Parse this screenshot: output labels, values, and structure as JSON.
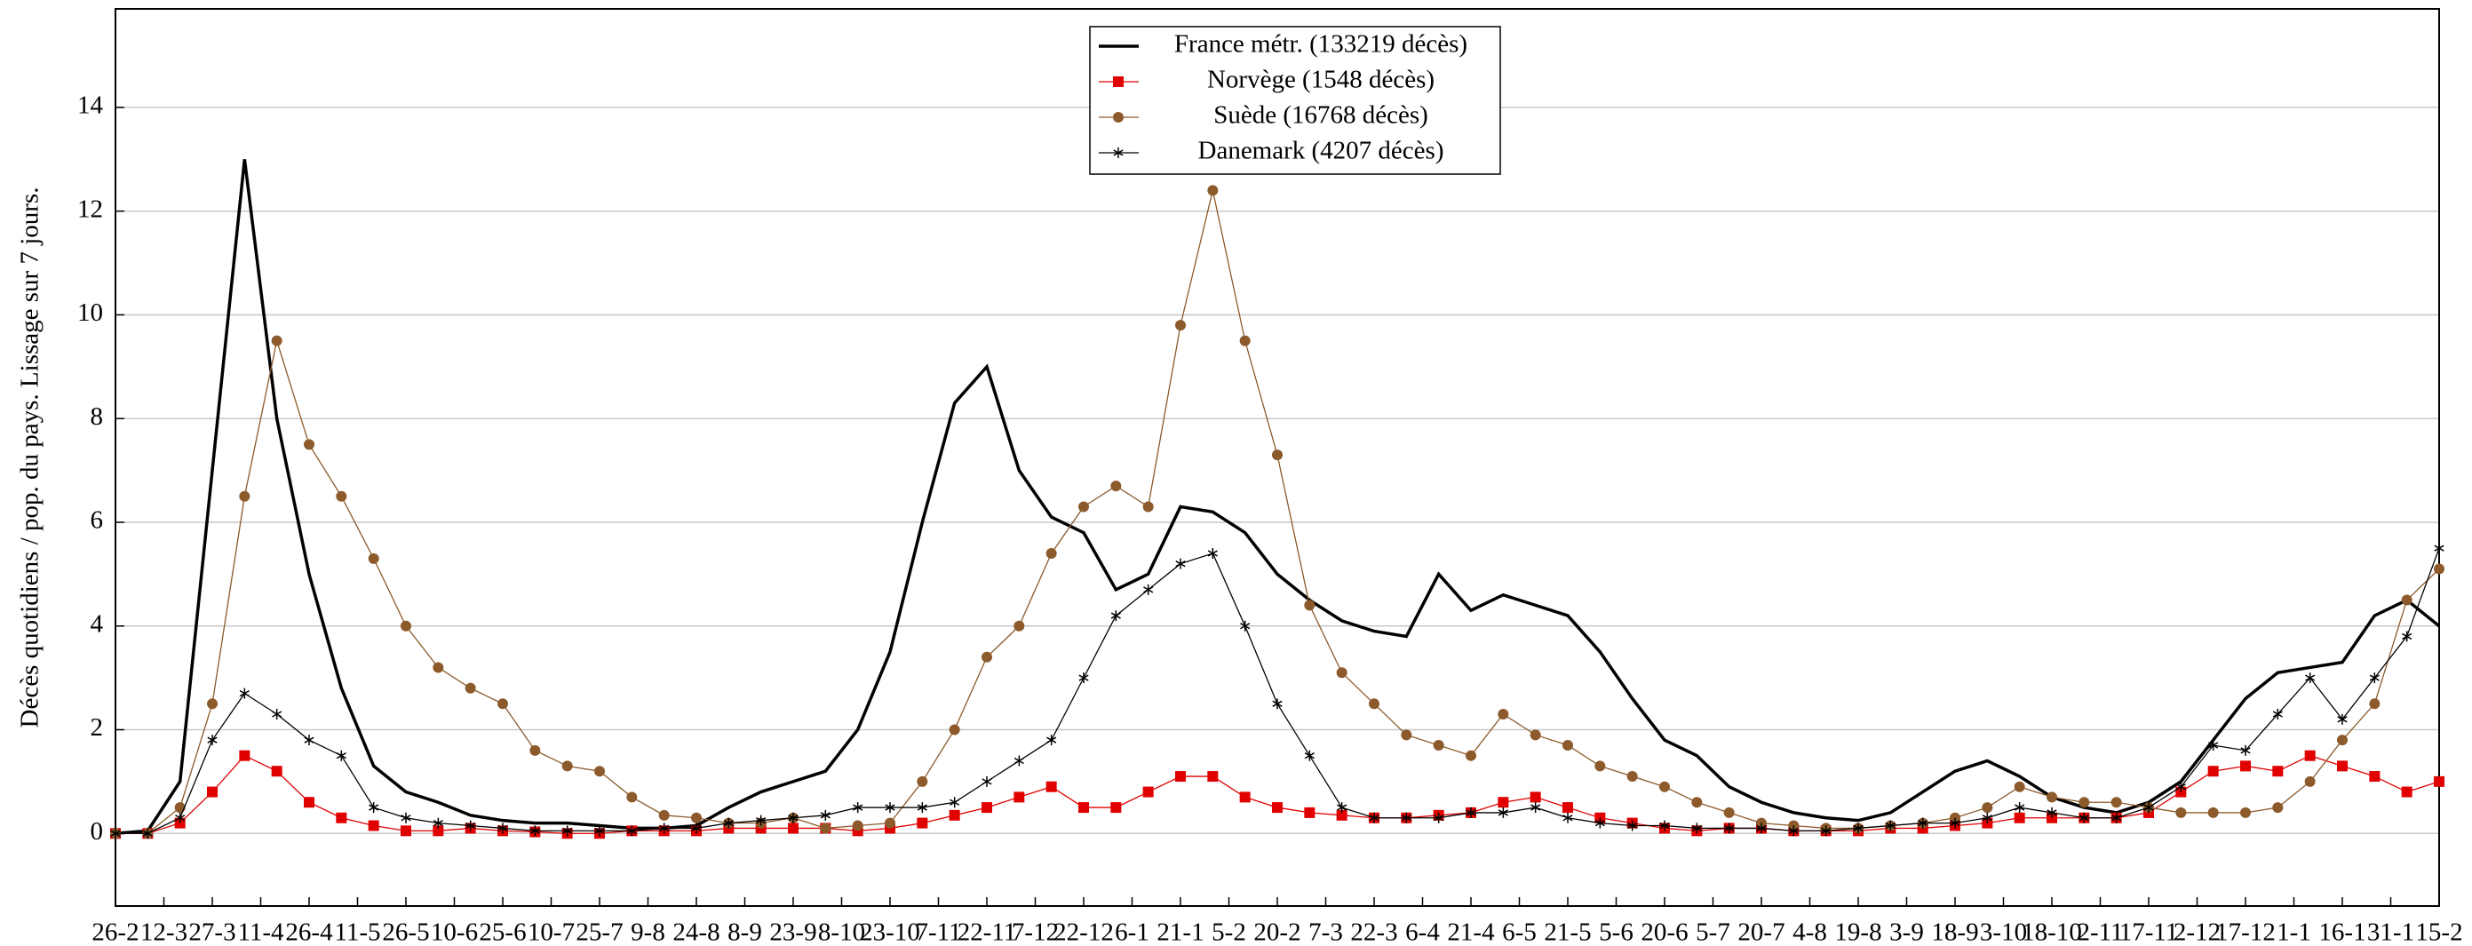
{
  "chart_data": {
    "type": "line",
    "ylabel": "Décès quotidiens / pop. du pays. Lissage sur 7 jours.",
    "xlim": [
      0,
      720
    ],
    "ylim": [
      -1.4,
      15.9
    ],
    "yticks": [
      0,
      2,
      4,
      6,
      8,
      10,
      12,
      14
    ],
    "grid": true,
    "legend": "upper center",
    "xticks": [
      {
        "value": 0,
        "label": "26-2"
      },
      {
        "value": 15,
        "label": "12-3"
      },
      {
        "value": 30,
        "label": "27-3"
      },
      {
        "value": 45,
        "label": "11-4"
      },
      {
        "value": 60,
        "label": "26-4"
      },
      {
        "value": 75,
        "label": "11-5"
      },
      {
        "value": 90,
        "label": "26-5"
      },
      {
        "value": 105,
        "label": "10-6"
      },
      {
        "value": 120,
        "label": "25-6"
      },
      {
        "value": 135,
        "label": "10-7"
      },
      {
        "value": 150,
        "label": "25-7"
      },
      {
        "value": 165,
        "label": "9-8"
      },
      {
        "value": 180,
        "label": "24-8"
      },
      {
        "value": 195,
        "label": "8-9"
      },
      {
        "value": 210,
        "label": "23-9"
      },
      {
        "value": 225,
        "label": "8-10"
      },
      {
        "value": 240,
        "label": "23-10"
      },
      {
        "value": 255,
        "label": "7-11"
      },
      {
        "value": 270,
        "label": "22-11"
      },
      {
        "value": 285,
        "label": "7-12"
      },
      {
        "value": 300,
        "label": "22-12"
      },
      {
        "value": 315,
        "label": "6-1"
      },
      {
        "value": 330,
        "label": "21-1"
      },
      {
        "value": 345,
        "label": "5-2"
      },
      {
        "value": 360,
        "label": "20-2"
      },
      {
        "value": 375,
        "label": "7-3"
      },
      {
        "value": 390,
        "label": "22-3"
      },
      {
        "value": 405,
        "label": "6-4"
      },
      {
        "value": 420,
        "label": "21-4"
      },
      {
        "value": 435,
        "label": "6-5"
      },
      {
        "value": 450,
        "label": "21-5"
      },
      {
        "value": 465,
        "label": "5-6"
      },
      {
        "value": 480,
        "label": "20-6"
      },
      {
        "value": 495,
        "label": "5-7"
      },
      {
        "value": 510,
        "label": "20-7"
      },
      {
        "value": 525,
        "label": "4-8"
      },
      {
        "value": 540,
        "label": "19-8"
      },
      {
        "value": 555,
        "label": "3-9"
      },
      {
        "value": 570,
        "label": "18-9"
      },
      {
        "value": 585,
        "label": "3-10"
      },
      {
        "value": 600,
        "label": "18-10"
      },
      {
        "value": 615,
        "label": "2-11"
      },
      {
        "value": 630,
        "label": "17-11"
      },
      {
        "value": 645,
        "label": "2-12"
      },
      {
        "value": 660,
        "label": "17-12"
      },
      {
        "value": 675,
        "label": "1-1"
      },
      {
        "value": 690,
        "label": "16-1"
      },
      {
        "value": 705,
        "label": "31-1"
      },
      {
        "value": 720,
        "label": "15-2"
      }
    ],
    "x": [
      0,
      10,
      20,
      30,
      40,
      50,
      60,
      70,
      80,
      90,
      100,
      110,
      120,
      130,
      140,
      150,
      160,
      170,
      180,
      190,
      200,
      210,
      220,
      230,
      240,
      250,
      260,
      270,
      280,
      290,
      300,
      310,
      320,
      330,
      340,
      350,
      360,
      370,
      380,
      390,
      400,
      410,
      420,
      430,
      440,
      450,
      460,
      470,
      480,
      490,
      500,
      510,
      520,
      530,
      540,
      550,
      560,
      570,
      580,
      590,
      600,
      610,
      620,
      630,
      640,
      650,
      660,
      670,
      680,
      690,
      700,
      710,
      720
    ],
    "series": [
      {
        "name": "France métr. (133219 décès)",
        "color": "#000000",
        "marker": "none",
        "values": [
          0,
          0.05,
          1.0,
          7,
          13,
          8,
          5,
          2.8,
          1.3,
          0.8,
          0.6,
          0.35,
          0.25,
          0.2,
          0.2,
          0.15,
          0.1,
          0.1,
          0.15,
          0.5,
          0.8,
          1.0,
          1.2,
          2,
          3.5,
          6,
          8.3,
          9.0,
          7,
          6.1,
          5.8,
          4.7,
          5.0,
          6.3,
          6.2,
          5.8,
          5.0,
          4.5,
          4.1,
          3.9,
          3.8,
          5.0,
          4.3,
          4.6,
          4.4,
          4.2,
          3.5,
          2.6,
          1.8,
          1.5,
          0.9,
          0.6,
          0.4,
          0.3,
          0.25,
          0.4,
          0.8,
          1.2,
          1.4,
          1.1,
          0.7,
          0.5,
          0.4,
          0.6,
          1.0,
          1.8,
          2.6,
          3.1,
          3.2,
          3.3,
          4.2,
          4.5,
          4.0
        ]
      },
      {
        "name": "Norvège (1548 décès)",
        "color": "#e00000",
        "marker": "square",
        "values": [
          0,
          0,
          0.2,
          0.8,
          1.5,
          1.2,
          0.6,
          0.3,
          0.15,
          0.05,
          0.05,
          0.1,
          0.05,
          0.03,
          0,
          0,
          0.05,
          0.05,
          0.05,
          0.1,
          0.1,
          0.1,
          0.1,
          0.05,
          0.1,
          0.2,
          0.35,
          0.5,
          0.7,
          0.9,
          0.5,
          0.5,
          0.8,
          1.1,
          1.1,
          0.7,
          0.5,
          0.4,
          0.35,
          0.3,
          0.3,
          0.35,
          0.4,
          0.6,
          0.7,
          0.5,
          0.3,
          0.2,
          0.1,
          0.05,
          0.1,
          0.1,
          0.05,
          0.05,
          0.05,
          0.1,
          0.1,
          0.15,
          0.2,
          0.3,
          0.3,
          0.3,
          0.3,
          0.4,
          0.8,
          1.2,
          1.3,
          1.2,
          1.5,
          1.3,
          1.1,
          0.8,
          1.0
        ]
      },
      {
        "name": "Suède (16768 décès)",
        "color": "#8c5a2b",
        "marker": "circle",
        "values": [
          0,
          0,
          0.5,
          2.5,
          6.5,
          9.5,
          7.5,
          6.5,
          5.3,
          4.0,
          3.2,
          2.8,
          2.5,
          1.6,
          1.3,
          1.2,
          0.7,
          0.35,
          0.3,
          0.2,
          0.2,
          0.3,
          0.1,
          0.15,
          0.2,
          1.0,
          2.0,
          3.4,
          4.0,
          5.4,
          6.3,
          6.7,
          6.3,
          9.8,
          12.4,
          9.5,
          7.3,
          4.4,
          3.1,
          2.5,
          1.9,
          1.7,
          1.5,
          2.3,
          1.9,
          1.7,
          1.3,
          1.1,
          0.9,
          0.6,
          0.4,
          0.2,
          0.15,
          0.1,
          0.1,
          0.15,
          0.2,
          0.3,
          0.5,
          0.9,
          0.7,
          0.6,
          0.6,
          0.5,
          0.4,
          0.4,
          0.4,
          0.5,
          1.0,
          1.8,
          2.5,
          4.5,
          5.1
        ]
      },
      {
        "name": "Danemark (4207 décès)",
        "color": "#000000",
        "marker": "star",
        "values": [
          0,
          0,
          0.3,
          1.8,
          2.7,
          2.3,
          1.8,
          1.5,
          0.5,
          0.3,
          0.2,
          0.15,
          0.1,
          0.05,
          0.05,
          0.05,
          0.05,
          0.1,
          0.1,
          0.2,
          0.25,
          0.3,
          0.35,
          0.5,
          0.5,
          0.5,
          0.6,
          1.0,
          1.4,
          1.8,
          3.0,
          4.2,
          4.7,
          5.2,
          5.4,
          4.0,
          2.5,
          1.5,
          0.5,
          0.3,
          0.3,
          0.3,
          0.4,
          0.4,
          0.5,
          0.3,
          0.2,
          0.15,
          0.15,
          0.1,
          0.1,
          0.1,
          0.05,
          0.05,
          0.1,
          0.15,
          0.2,
          0.2,
          0.3,
          0.5,
          0.4,
          0.3,
          0.3,
          0.5,
          0.9,
          1.7,
          1.6,
          2.3,
          3.0,
          2.2,
          3.0,
          3.8,
          5.5
        ]
      }
    ]
  }
}
